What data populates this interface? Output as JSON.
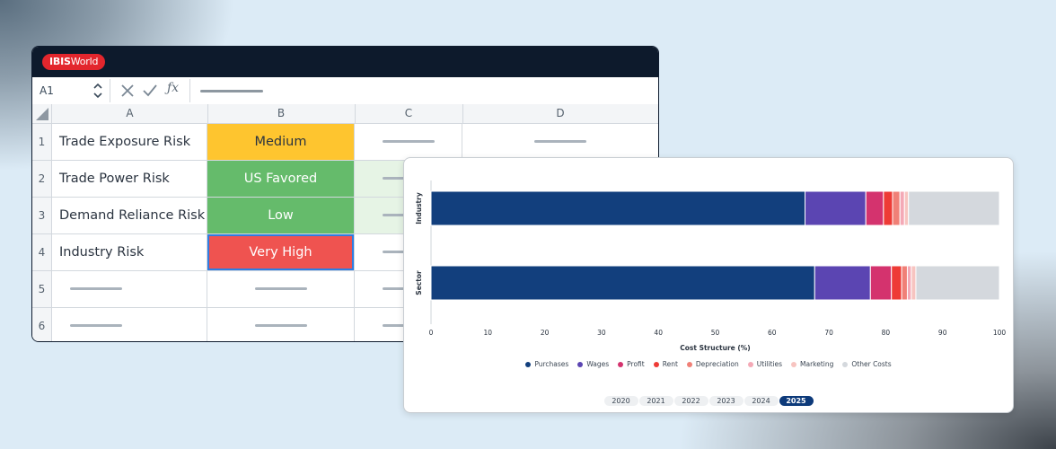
{
  "app": {
    "logo_bold": "IBIS",
    "logo_rest": "World"
  },
  "formula_bar": {
    "cell_ref": "A1"
  },
  "columns": [
    "A",
    "B",
    "C",
    "D"
  ],
  "rows": [
    {
      "num": "1",
      "label": "Trade Exposure Risk",
      "value": "Medium",
      "color": "#fec52f"
    },
    {
      "num": "2",
      "label": "Trade Power Risk",
      "value": "US Favored",
      "color": "#65bb6b"
    },
    {
      "num": "3",
      "label": "Demand Reliance Risk",
      "value": "Low",
      "color": "#65bb6b"
    },
    {
      "num": "4",
      "label": "Industry Risk",
      "value": "Very High",
      "color": "#ef5350"
    },
    {
      "num": "5"
    },
    {
      "num": "6"
    }
  ],
  "chart_data": {
    "type": "bar",
    "orientation": "horizontal",
    "stacked": true,
    "categories": [
      "Industry",
      "Sector"
    ],
    "xlabel": "Cost Structure (%)",
    "xlim": [
      0,
      100
    ],
    "xticks": [
      "0",
      "10",
      "20",
      "30",
      "40",
      "50",
      "60",
      "70",
      "80",
      "90",
      "100"
    ],
    "series": [
      {
        "name": "Purchases",
        "color": "#123f7d",
        "values": [
          65.8,
          67.5
        ]
      },
      {
        "name": "Wages",
        "color": "#5b45b2",
        "values": [
          10.7,
          9.8
        ]
      },
      {
        "name": "Profit",
        "color": "#d4336e",
        "values": [
          3.1,
          3.7
        ]
      },
      {
        "name": "Rent",
        "color": "#ee3b36",
        "values": [
          1.6,
          1.8
        ]
      },
      {
        "name": "Depreciation",
        "color": "#f08077",
        "values": [
          1.3,
          1.0
        ]
      },
      {
        "name": "Utilities",
        "color": "#f4a9b6",
        "values": [
          0.8,
          0.7
        ]
      },
      {
        "name": "Marketing",
        "color": "#f7c4c0",
        "values": [
          0.7,
          0.8
        ]
      },
      {
        "name": "Other Costs",
        "color": "#d4d8dd",
        "values": [
          16.0,
          14.7
        ]
      }
    ],
    "legend_position": "bottom",
    "grid": false
  },
  "years": [
    "2020",
    "2021",
    "2022",
    "2023",
    "2024",
    "2025"
  ],
  "active_year": "2025"
}
